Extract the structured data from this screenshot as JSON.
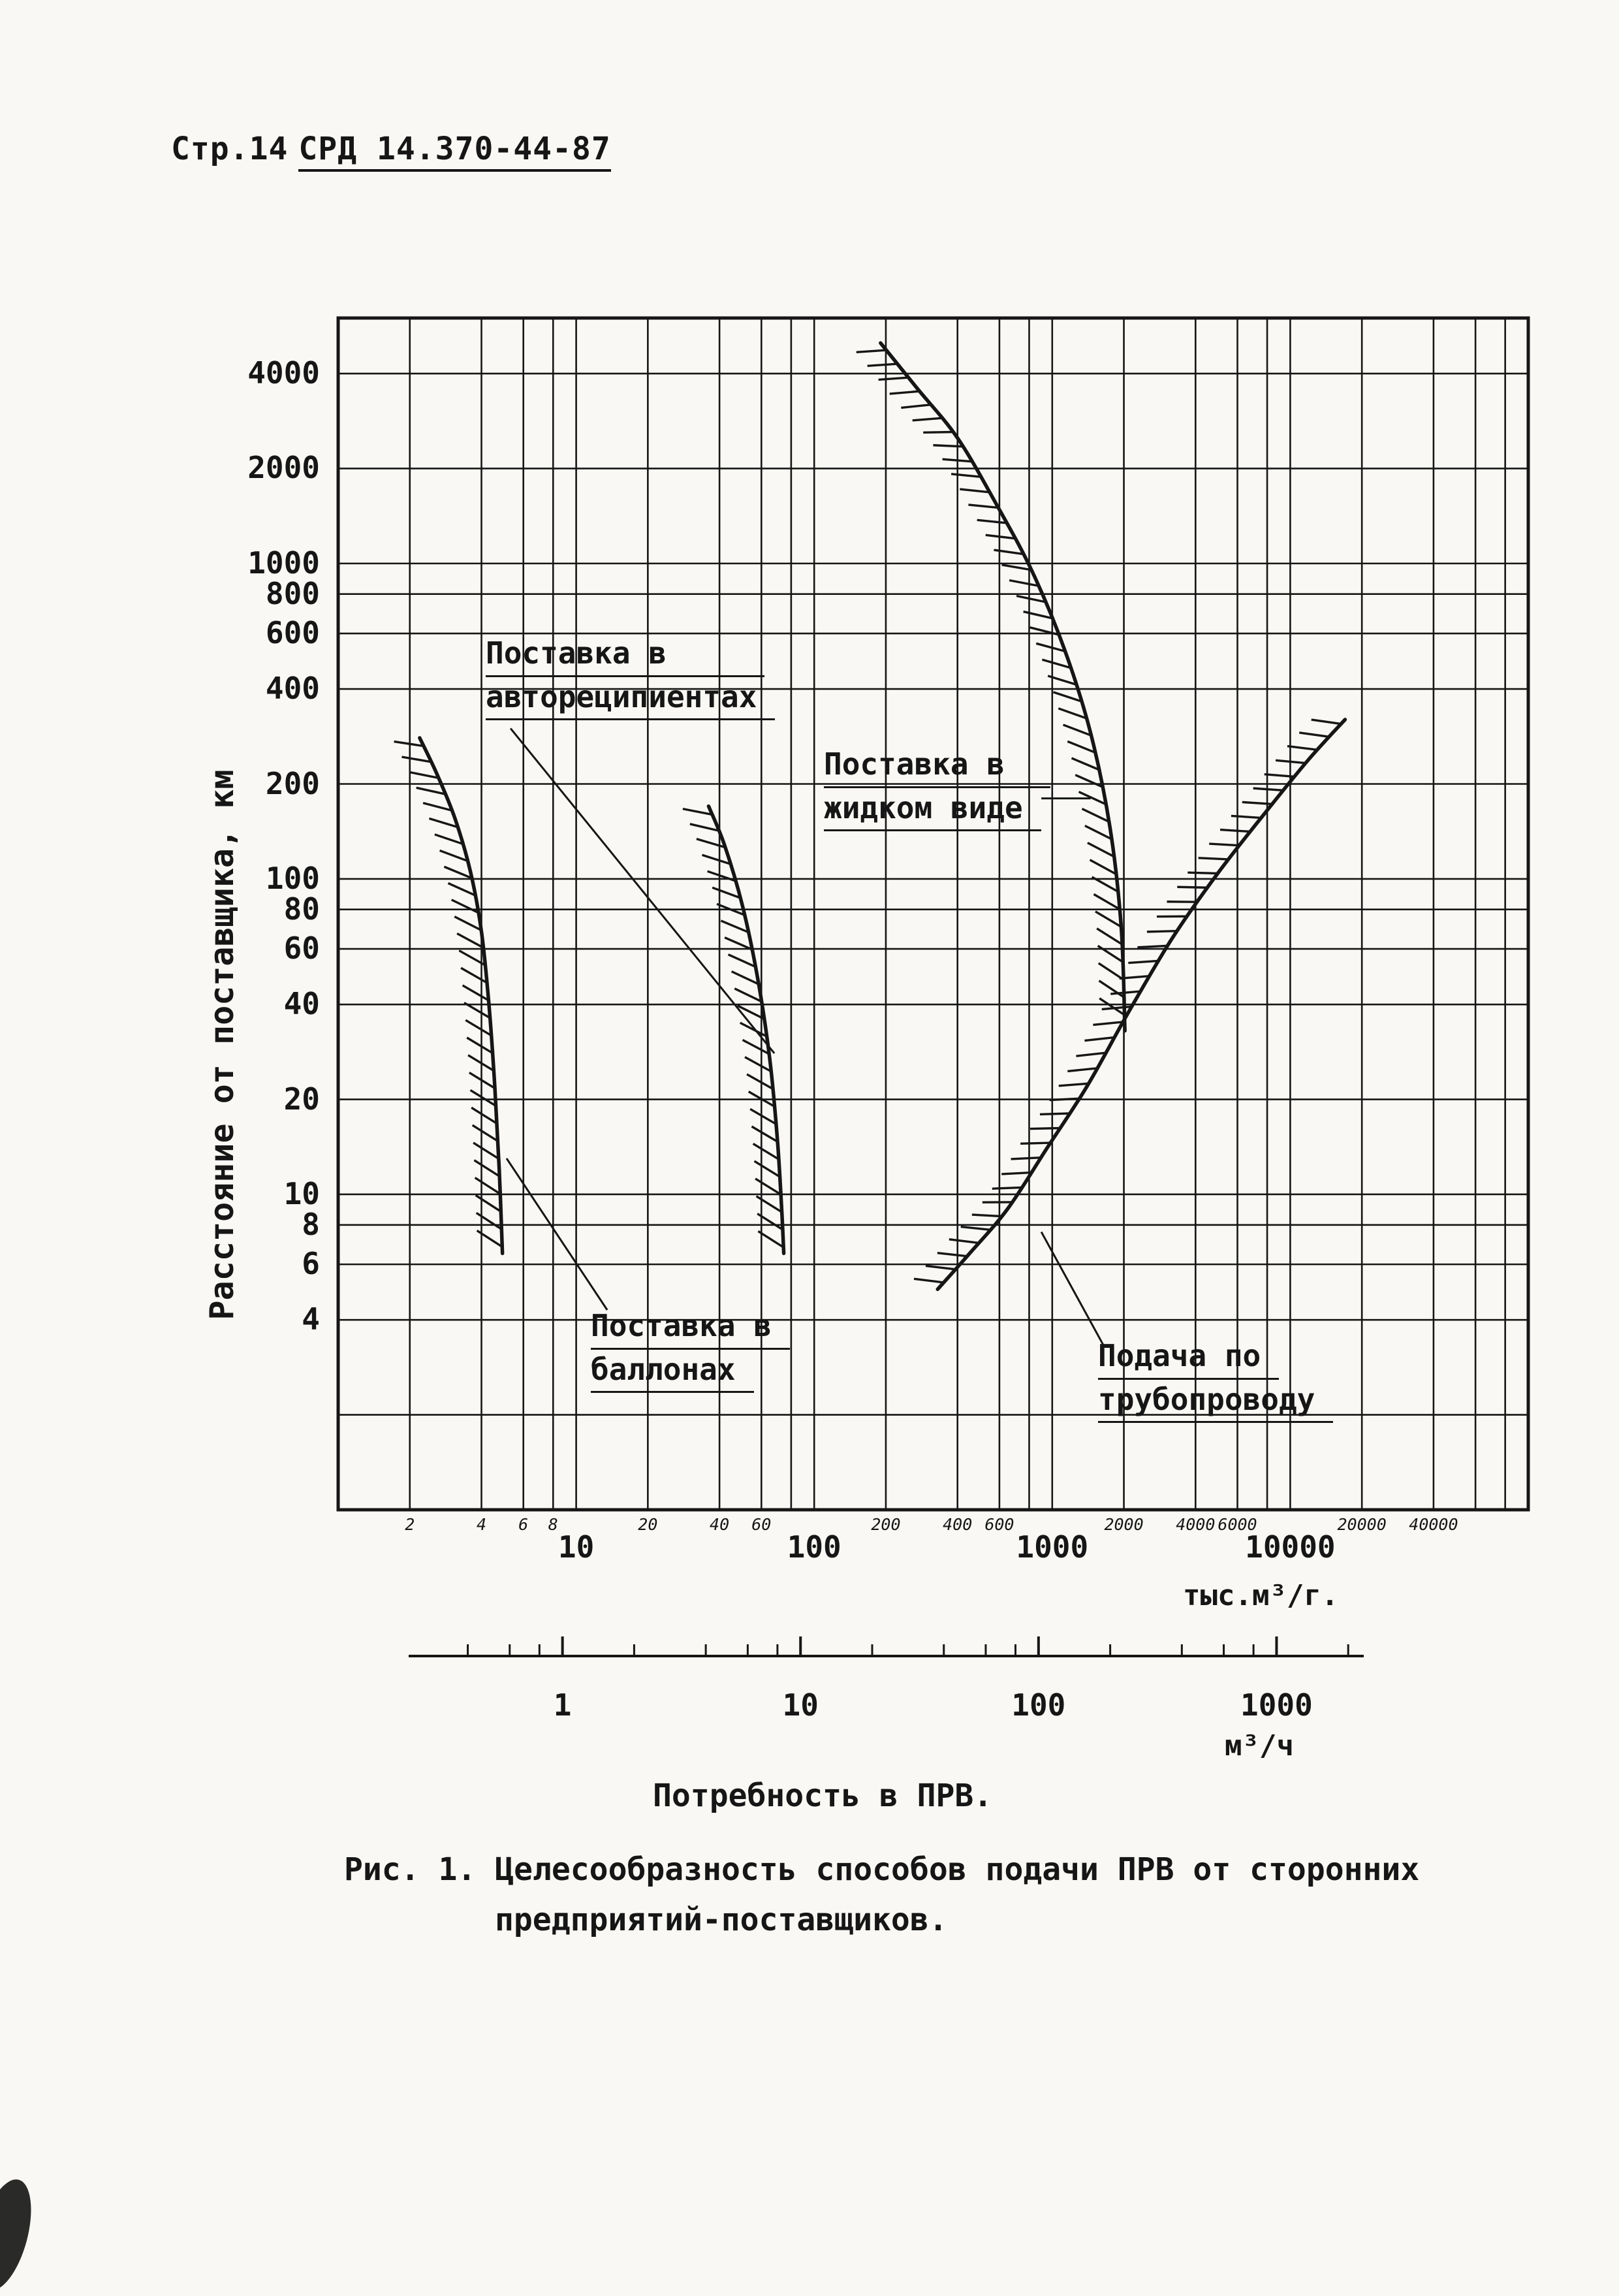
{
  "colors": {
    "ink": "#161616",
    "paper": "#f9f8f4"
  },
  "page": {
    "header_prefix": "Стр.14",
    "header_doc": "СРД 14.370-44-87"
  },
  "figure_caption": {
    "line1": "Рис. 1. Целесообразность способов подачи ПРВ от сторонних",
    "line2": "предприятий-поставщиков."
  },
  "chart_data": {
    "type": "line",
    "title": "Рис. 1. Целесообразность способов подачи ПРВ от сторонних предприятий-поставщиков.",
    "xlabel": "Потребность в ПРВ.",
    "ylabel": "Расстояние от поставщика, км",
    "x_scale": "log",
    "y_scale": "log",
    "xlim": [
      1,
      100000
    ],
    "ylim": [
      1,
      6000
    ],
    "grid": true,
    "grid_pattern": [
      1,
      2,
      4,
      6,
      8
    ],
    "y_ticks": [
      4000,
      2000,
      1000,
      800,
      600,
      400,
      200,
      100,
      80,
      60,
      40,
      20,
      10,
      8,
      6,
      4
    ],
    "x_axis_primary": {
      "unit": "тыс.м³/г.",
      "major_ticks": [
        10,
        100,
        1000,
        10000
      ],
      "minor_ticks": [
        2,
        4,
        6,
        8,
        20,
        40,
        60,
        200,
        400,
        600,
        2000,
        4000,
        6000,
        20000,
        40000
      ]
    },
    "x_axis_secondary": {
      "unit": "м³/ч",
      "major_ticks": [
        1,
        10,
        100,
        1000
      ],
      "conversion_factor_to_primary": 8.76
    },
    "series": [
      {
        "id": "cylinders",
        "name": "Поставка в баллонах",
        "hatch_side": 1,
        "points": [
          [
            2.2,
            280
          ],
          [
            2.6,
            215
          ],
          [
            3.1,
            155
          ],
          [
            3.6,
            105
          ],
          [
            4.0,
            68
          ],
          [
            4.3,
            40
          ],
          [
            4.55,
            22
          ],
          [
            4.75,
            12
          ],
          [
            4.9,
            6.5
          ]
        ]
      },
      {
        "id": "auto_recipients",
        "name": "Поставка в автореципиентах",
        "hatch_side": 1,
        "points": [
          [
            36,
            170
          ],
          [
            42,
            128
          ],
          [
            50,
            82
          ],
          [
            58,
            48
          ],
          [
            65,
            27
          ],
          [
            70,
            15
          ],
          [
            73,
            9
          ],
          [
            74.5,
            6.5
          ]
        ]
      },
      {
        "id": "liquid",
        "name": "Поставка в жидком виде",
        "hatch_side": 1,
        "points": [
          [
            190,
            5000
          ],
          [
            270,
            3600
          ],
          [
            400,
            2500
          ],
          [
            580,
            1550
          ],
          [
            820,
            950
          ],
          [
            1120,
            540
          ],
          [
            1450,
            290
          ],
          [
            1750,
            145
          ],
          [
            1950,
            70
          ],
          [
            2020,
            33
          ]
        ]
      },
      {
        "id": "pipeline",
        "name": "Подача по трубопроводу",
        "hatch_side": -1,
        "points": [
          [
            330,
            5
          ],
          [
            450,
            6.5
          ],
          [
            650,
            9
          ],
          [
            950,
            14
          ],
          [
            1400,
            22
          ],
          [
            2100,
            38
          ],
          [
            3200,
            65
          ],
          [
            5000,
            105
          ],
          [
            8000,
            165
          ],
          [
            12000,
            240
          ],
          [
            17000,
            320
          ]
        ]
      }
    ],
    "annotations": [
      {
        "id": "auto_recipients",
        "line1": "Поставка в",
        "line2": "автореципиентах",
        "leader": [
          [
            5.3,
            300
          ],
          [
            68,
            28
          ]
        ]
      },
      {
        "id": "liquid",
        "line1": "Поставка в",
        "line2": "жидком виде",
        "leader": [
          [
            900,
            180
          ],
          [
            1450,
            180
          ]
        ]
      },
      {
        "id": "cylinders",
        "line1": "Поставка в",
        "line2": "баллонах",
        "leader": [
          [
            5.1,
            13
          ],
          [
            13.5,
            4.3
          ]
        ]
      },
      {
        "id": "pipeline",
        "line1": "Подача по",
        "line2": "трубопроводу",
        "leader": [
          [
            900,
            7.6
          ],
          [
            1650,
            3.3
          ]
        ]
      }
    ]
  }
}
